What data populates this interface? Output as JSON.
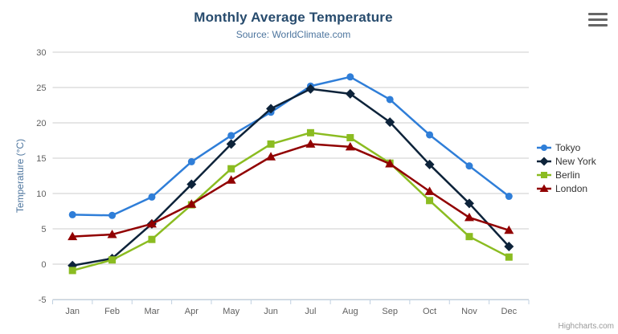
{
  "chart": {
    "title": "Monthly Average Temperature",
    "subtitle": "Source: WorldClimate.com",
    "credits": "Highcharts.com",
    "export_icon": "hamburger-menu-icon",
    "colors": {
      "title": "#274b6d",
      "subtitle": "#4d759e",
      "axis_title": "#4d759e",
      "tick_label": "#606060",
      "gridline": "#cccccc",
      "axis_line": "#c0d0e0",
      "legend_text": "#333333",
      "credits": "#999999"
    }
  },
  "chart_data": {
    "type": "line",
    "title": "Monthly Average Temperature",
    "subtitle": "Source: WorldClimate.com",
    "xlabel": "",
    "ylabel": "Temperature (°C)",
    "ylim": [
      -5,
      30
    ],
    "yticks": [
      -5,
      0,
      5,
      10,
      15,
      20,
      25,
      30
    ],
    "grid": true,
    "legend_position": "right",
    "categories": [
      "Jan",
      "Feb",
      "Mar",
      "Apr",
      "May",
      "Jun",
      "Jul",
      "Aug",
      "Sep",
      "Oct",
      "Nov",
      "Dec"
    ],
    "series": [
      {
        "name": "Tokyo",
        "color": "#2f7ed8",
        "marker": "circle",
        "values": [
          7.0,
          6.9,
          9.5,
          14.5,
          18.2,
          21.5,
          25.2,
          26.5,
          23.3,
          18.3,
          13.9,
          9.6
        ]
      },
      {
        "name": "New York",
        "color": "#0d233a",
        "marker": "diamond",
        "values": [
          -0.2,
          0.8,
          5.7,
          11.3,
          17.0,
          22.0,
          24.8,
          24.1,
          20.1,
          14.1,
          8.6,
          2.5
        ]
      },
      {
        "name": "Berlin",
        "color": "#8bbc21",
        "marker": "square",
        "values": [
          -0.9,
          0.6,
          3.5,
          8.4,
          13.5,
          17.0,
          18.6,
          17.9,
          14.3,
          9.0,
          3.9,
          1.0
        ]
      },
      {
        "name": "London",
        "color": "#910000",
        "marker": "triangle",
        "values": [
          3.9,
          4.2,
          5.7,
          8.5,
          11.9,
          15.2,
          17.0,
          16.6,
          14.2,
          10.3,
          6.6,
          4.8
        ]
      }
    ]
  }
}
